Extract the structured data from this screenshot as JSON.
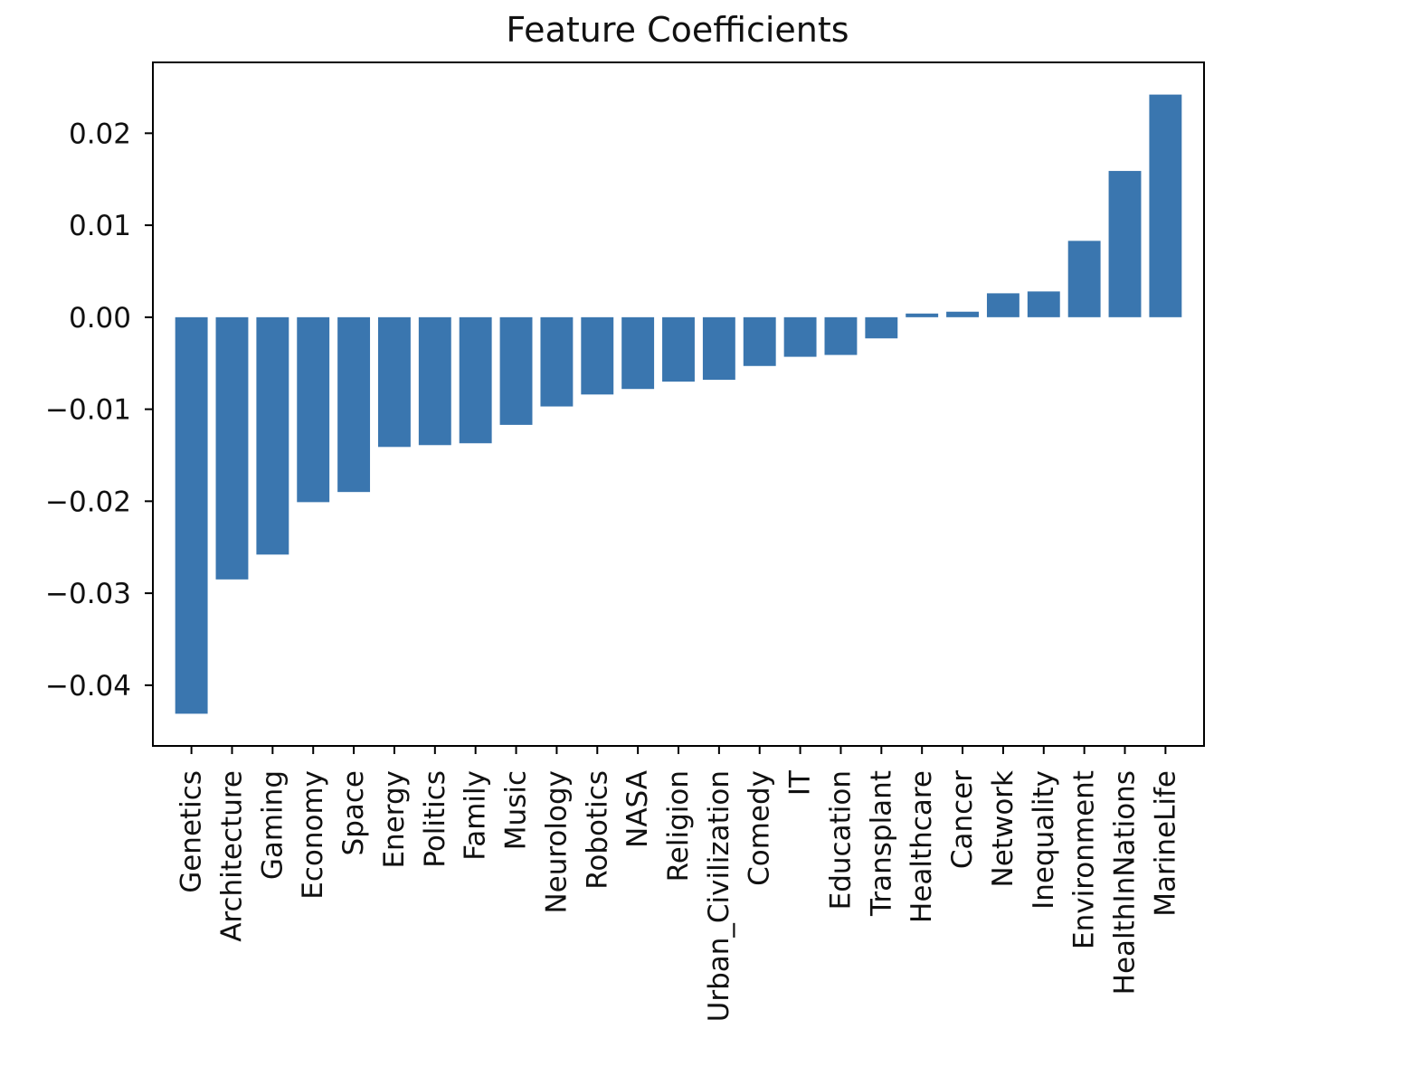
{
  "chart_data": {
    "type": "bar",
    "title": "Feature Coefficients",
    "xlabel": "",
    "ylabel": "",
    "categories": [
      "Genetics",
      "Architecture",
      "Gaming",
      "Economy",
      "Space",
      "Energy",
      "Politics",
      "Family",
      "Music",
      "Neurology",
      "Robotics",
      "NASA",
      "Religion",
      "Urban_Civilization",
      "Comedy",
      "IT",
      "Education",
      "Transplant",
      "Healthcare",
      "Cancer",
      "Network",
      "Inequality",
      "Environment",
      "HealthInNations",
      "MarineLife"
    ],
    "values": [
      -0.0431,
      -0.0285,
      -0.0258,
      -0.0201,
      -0.019,
      -0.0141,
      -0.0139,
      -0.0137,
      -0.0117,
      -0.0097,
      -0.0084,
      -0.0078,
      -0.007,
      -0.0068,
      -0.0053,
      -0.0043,
      -0.0041,
      -0.0023,
      0.0004,
      0.0006,
      0.0026,
      0.0028,
      0.0083,
      0.0159,
      0.0242
    ],
    "ylim": [
      -0.0466,
      0.0277
    ],
    "yticks": [
      -0.04,
      -0.03,
      -0.02,
      -0.01,
      0.0,
      0.01,
      0.02
    ],
    "ytick_labels": [
      "−0.04",
      "−0.03",
      "−0.02",
      "−0.01",
      "0.00",
      "0.01",
      "0.02"
    ],
    "bar_color": "#3a76af",
    "grid": false,
    "legend": "none"
  }
}
